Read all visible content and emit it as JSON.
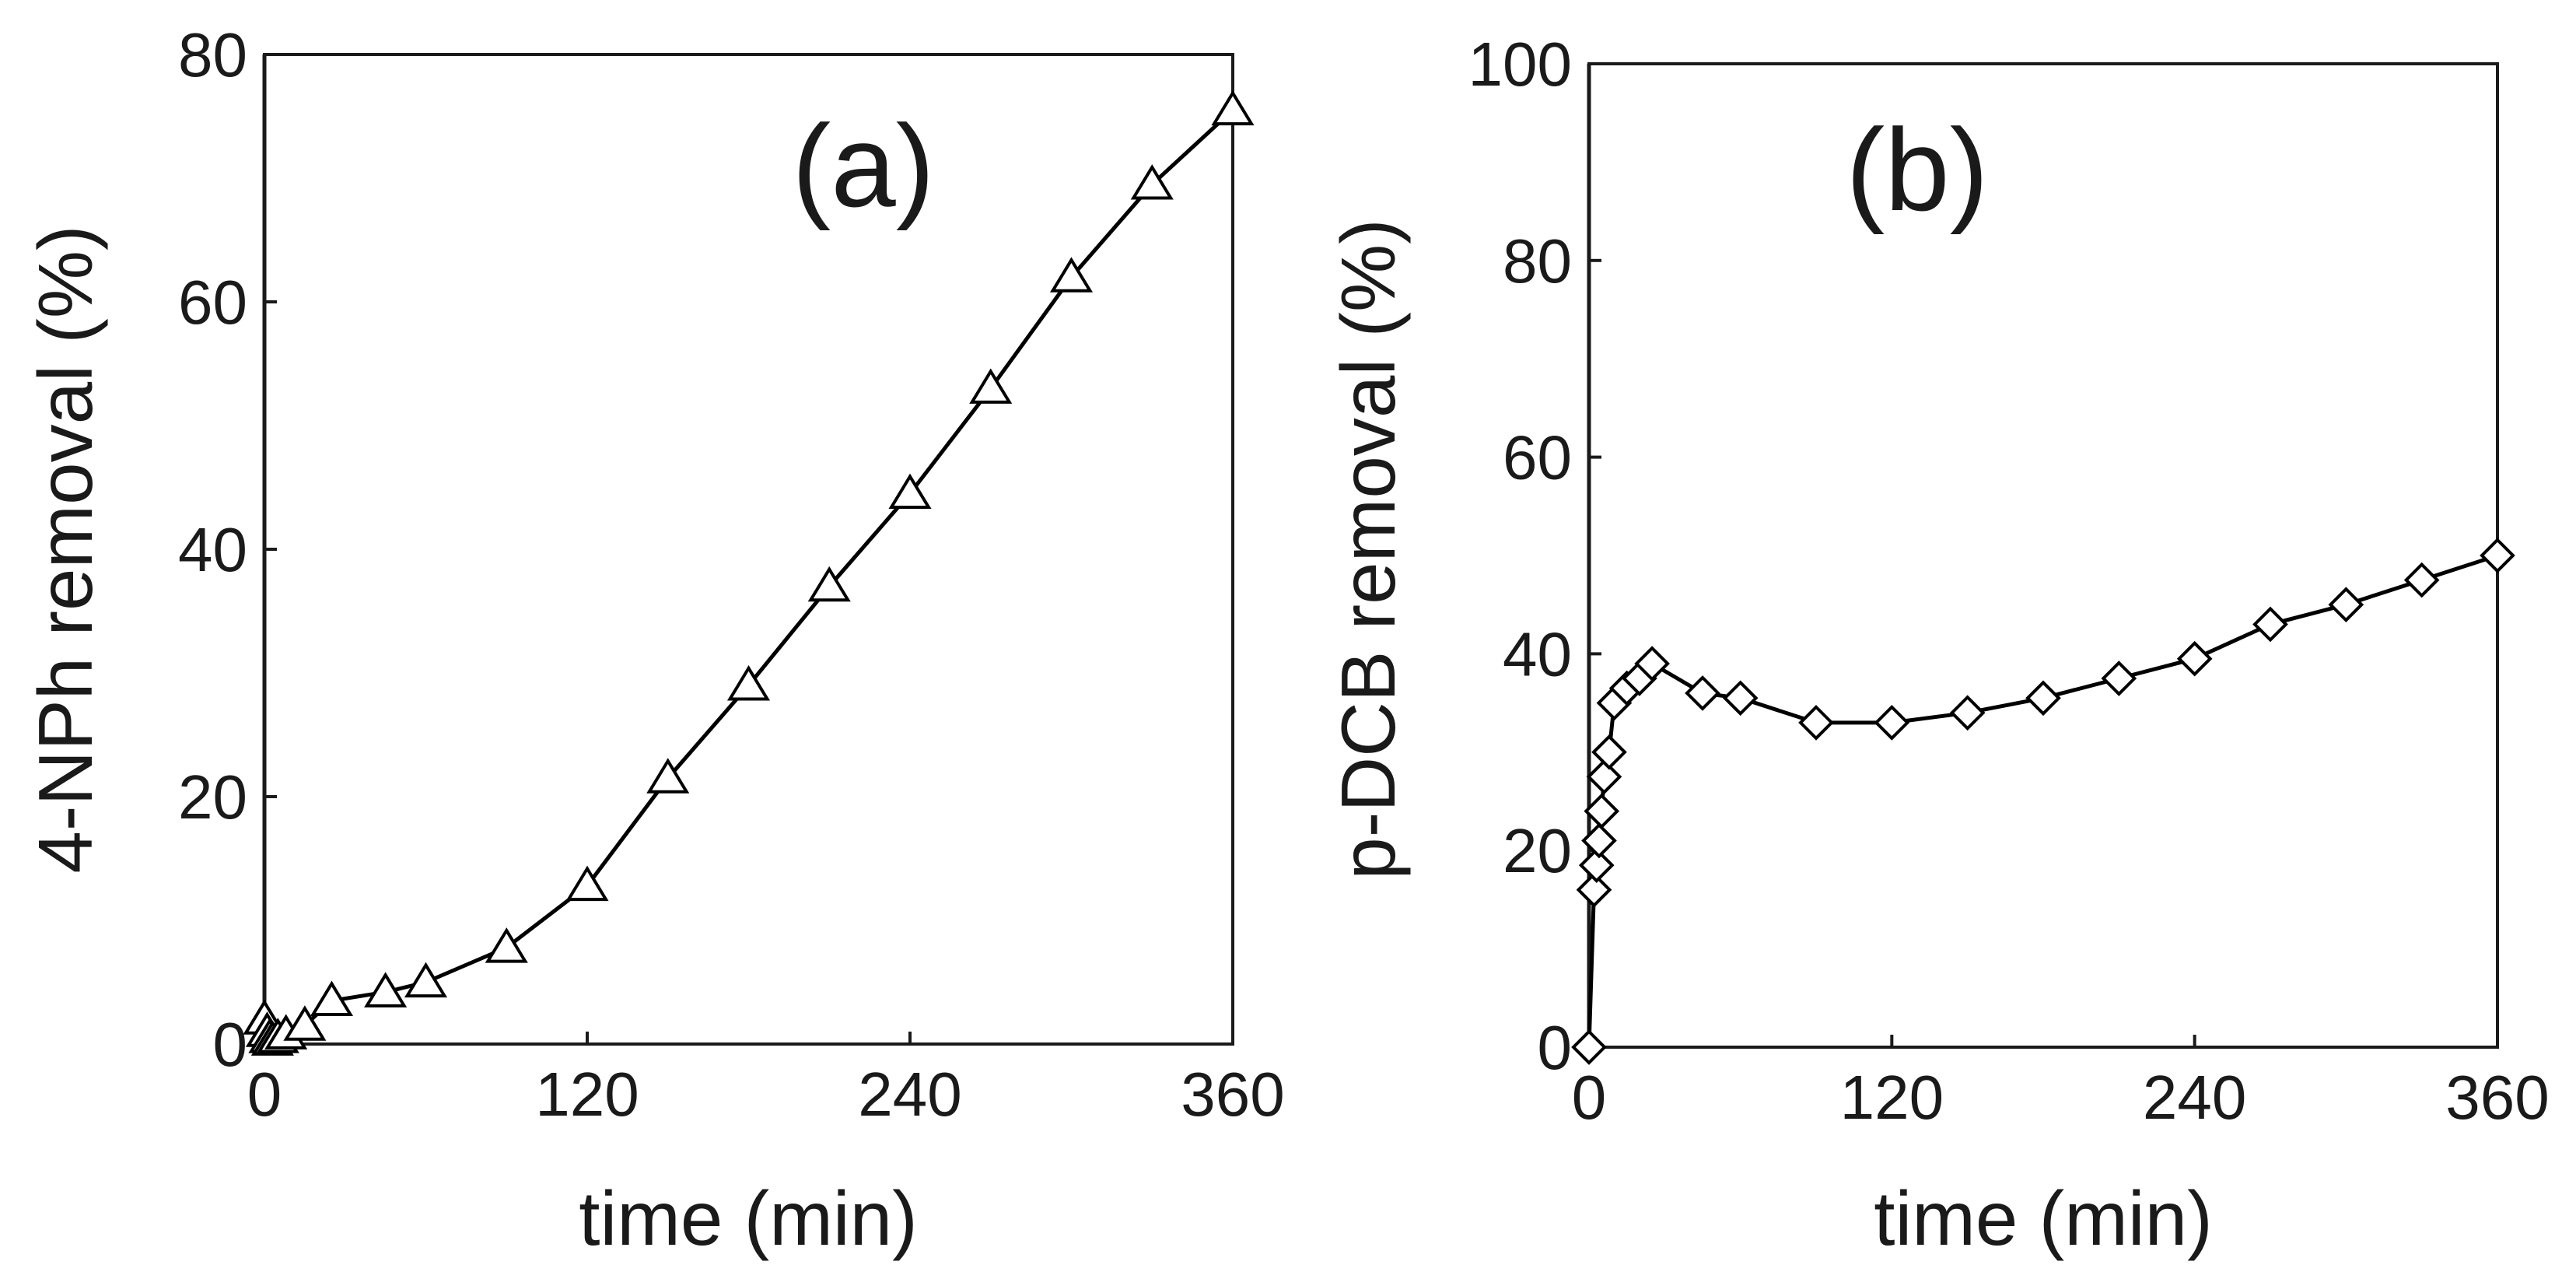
{
  "chart_data": [
    {
      "type": "line",
      "panel_label": "(a)",
      "xlabel": "time (min)",
      "ylabel": "4-NPh removal (%)",
      "xlim": [
        0,
        360
      ],
      "ylim": [
        0,
        80
      ],
      "xticks": [
        0,
        120,
        240,
        360
      ],
      "yticks": [
        0,
        20,
        40,
        60,
        80
      ],
      "marker": "triangle",
      "series": [
        {
          "name": "4-NPh",
          "x": [
            0,
            1,
            2,
            3,
            5,
            8,
            15,
            25,
            45,
            60,
            90,
            120,
            150,
            180,
            210,
            240,
            270,
            300,
            330,
            360
          ],
          "y": [
            2,
            1,
            0.5,
            0.3,
            0.5,
            0.8,
            1.5,
            3.5,
            4.2,
            5.0,
            7.8,
            12.8,
            21.5,
            29.0,
            37.0,
            44.5,
            53.0,
            62.0,
            69.5,
            75.5
          ]
        }
      ]
    },
    {
      "type": "line",
      "panel_label": "(b)",
      "xlabel": "time (min)",
      "ylabel": "p-DCB removal (%)",
      "xlim": [
        0,
        360
      ],
      "ylim": [
        0,
        100
      ],
      "xticks": [
        0,
        120,
        240,
        360
      ],
      "yticks": [
        0,
        20,
        40,
        60,
        80,
        100
      ],
      "marker": "diamond",
      "series": [
        {
          "name": "p-DCB",
          "x": [
            0,
            2,
            3,
            4,
            5,
            6,
            8,
            10,
            15,
            20,
            25,
            45,
            60,
            90,
            120,
            150,
            180,
            210,
            240,
            270,
            300,
            330,
            360
          ],
          "y": [
            0,
            16,
            18.5,
            21,
            24,
            27.5,
            30,
            35,
            36.5,
            37.5,
            39,
            36,
            35.5,
            33,
            33,
            34,
            35.5,
            37.5,
            39.5,
            43,
            45,
            47.5,
            50
          ]
        }
      ]
    }
  ]
}
